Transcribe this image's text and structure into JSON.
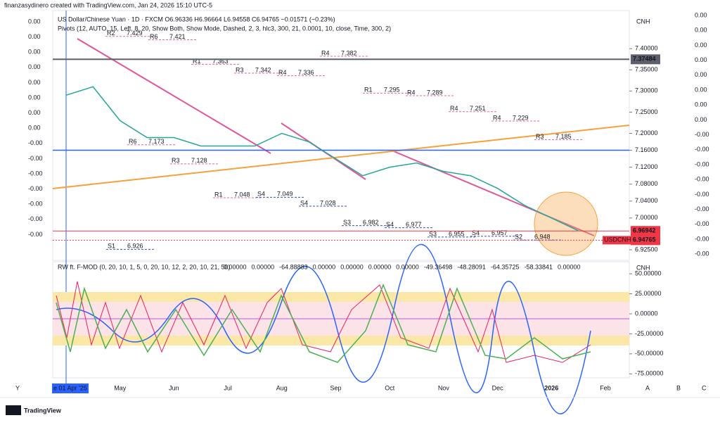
{
  "header": {
    "credit": "finanzasydinero created with TradingView.com, Jan 24, 2026 15:10 UTC-5",
    "symbol": "US Dollar/Chinese Yuan · 1D · FXCM  O6.96336  H6.96664  L6.94558  C6.94765  −0.01571 (−0.23%)",
    "pivots": "Pivots (12, AUTO, 15, Left, 8, 20, Show Both, Show Mode, Dashed, 2, 3, hlc3, 300, 21, 0.0001, 10, close, Time, 300, 2)"
  },
  "chart_data": {
    "type": "line",
    "color": "#26a69a",
    "categories": [
      "e 01 Apr '25",
      null,
      "May",
      null,
      "Jun",
      null,
      "Jul",
      null,
      "Aug",
      null,
      "Sep",
      null,
      "Oct",
      null,
      "Nov",
      null,
      "Dec",
      null,
      "2026",
      null,
      "Feb"
    ],
    "values": [
      7.29,
      7.31,
      7.23,
      7.19,
      7.19,
      7.17,
      7.17,
      7.17,
      7.2,
      7.18,
      7.14,
      7.1,
      7.12,
      7.13,
      7.11,
      7.1,
      7.07,
      7.03,
      7.0,
      6.97,
      null
    ],
    "ylim": [
      6.9,
      7.49
    ],
    "yticks": [
      {
        "value": 7.4,
        "label": "7.40000"
      },
      {
        "value": 7.35,
        "label": "7.35000"
      },
      {
        "value": 7.3,
        "label": "7.30000"
      },
      {
        "value": 7.25,
        "label": "7.25000"
      },
      {
        "value": 7.2,
        "label": "7.20000"
      },
      {
        "value": 7.16,
        "label": "7.16000"
      },
      {
        "value": 7.12,
        "label": "7.12000"
      },
      {
        "value": 7.08,
        "label": "7.08000"
      },
      {
        "value": 7.04,
        "label": "7.04000"
      },
      {
        "value": 7.0,
        "label": "7.00000"
      },
      {
        "value": 6.925,
        "label": "6.92500"
      }
    ],
    "currency": "CNH"
  },
  "price_labels": [
    {
      "value": 7.37484,
      "label": "7.37484",
      "color": "#5d606b"
    },
    {
      "value": 6.96942,
      "label": "6.96942",
      "color": "#f23645"
    },
    {
      "value": 6.94765,
      "label": "6.94765",
      "name": "USDCNH",
      "color": "#f23645"
    }
  ],
  "pivot_levels": [
    {
      "name": "R2",
      "value": 7.429
    },
    {
      "name": "R6",
      "value": 7.421
    },
    {
      "name": "R1",
      "value": 7.363
    },
    {
      "name": "R3",
      "value": 7.342
    },
    {
      "name": "R4",
      "value": 7.336
    },
    {
      "name": "R4",
      "value": 7.382
    },
    {
      "name": "R1",
      "value": 7.295
    },
    {
      "name": "R4",
      "value": 7.289
    },
    {
      "name": "R4",
      "value": 7.251
    },
    {
      "name": "R4",
      "value": 7.229
    },
    {
      "name": "R3",
      "value": 7.185
    },
    {
      "name": "R6",
      "value": 7.173
    },
    {
      "name": "R3",
      "value": 7.128
    },
    {
      "name": "R1",
      "value": 7.048
    },
    {
      "name": "S4",
      "value": 7.049
    },
    {
      "name": "S4",
      "value": 7.028
    },
    {
      "name": "S3",
      "value": 6.982
    },
    {
      "name": "S4",
      "value": 6.977
    },
    {
      "name": "S3",
      "value": 6.955
    },
    {
      "name": "S4",
      "value": 6.957
    },
    {
      "name": "S2",
      "value": 6.948
    },
    {
      "name": "S1",
      "value": 6.926
    }
  ],
  "left_scale": [
    "0.00",
    "0.00",
    "0.00",
    "0.00",
    "0.00",
    "0.00",
    "0.00",
    "0.00",
    "-0.00",
    "-0.00",
    "-0.00",
    "-0.00",
    "-0.00",
    "-0.00",
    "-0.00"
  ],
  "right_scale": [
    "0.00",
    "0.00",
    "0.00",
    "0.00",
    "0.00",
    "0.00",
    "0.00",
    "0.00",
    "-0.00",
    "-0.00",
    "-0.00",
    "-0.00",
    "-0.00",
    "-0.00",
    "-0.00",
    "-0.00",
    "-0.00"
  ],
  "indicator": {
    "title": "RW ft. F-MOD (0, 20, 10, 1, 5, 0, 20, 10, 12, 2, 20, 10, 21, 50)",
    "readings": [
      "0.00000",
      "0.00000",
      "-64.88883",
      "0.00000",
      "0.00000",
      "0.00000",
      "0.00000",
      "-49.36498",
      "-48.28091",
      "-64.35725",
      "-58.33841",
      "0.00000"
    ],
    "reading_colors": [
      "#ff9800",
      "#4caf50",
      "#e91e63",
      "#9c27b0",
      "#9c27b0",
      "#ff5252",
      "#ff5252",
      "#4caf50",
      "#e91e63",
      "#9c27b0",
      "#ff9800",
      "#4caf50"
    ],
    "ylim": [
      -80,
      65
    ],
    "yticks": [
      {
        "value": 50,
        "label": "50.00000"
      },
      {
        "value": 25,
        "label": "25.00000"
      },
      {
        "value": 0,
        "label": "0.00000"
      },
      {
        "value": -25,
        "label": "-25.00000"
      },
      {
        "value": -50,
        "label": "-50.00000"
      },
      {
        "value": -75,
        "label": "-75.00000"
      }
    ],
    "currency": "CNH"
  },
  "corner_letters": [
    "Y",
    "A",
    "B",
    "C"
  ],
  "footer": "TradingView"
}
